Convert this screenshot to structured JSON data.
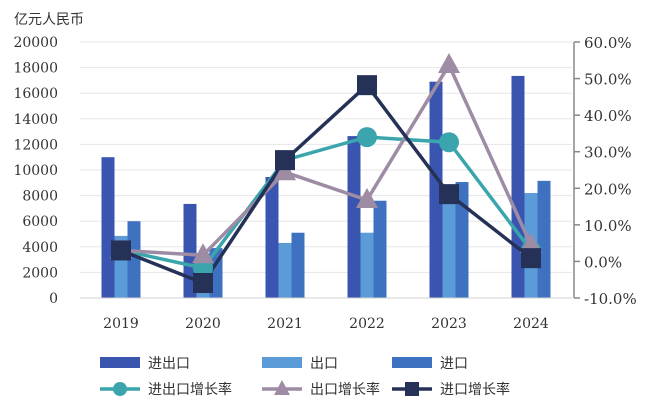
{
  "chart_data": {
    "type": "bar",
    "title": "",
    "left_unit_label": "亿元人民币",
    "categories": [
      "2019",
      "2020",
      "2021",
      "2022",
      "2023",
      "2024"
    ],
    "left_axis": {
      "range": [
        0,
        20000
      ],
      "ticks": [
        0,
        2000,
        4000,
        6000,
        8000,
        10000,
        12000,
        14000,
        16000,
        18000,
        20000
      ]
    },
    "right_axis": {
      "range": [
        -10,
        60
      ],
      "ticks": [
        "-10.0%",
        "0.0%",
        "10.0%",
        "20.0%",
        "30.0%",
        "40.0%",
        "50.0%",
        "60.0%"
      ],
      "tick_values": [
        -10,
        0,
        10,
        20,
        30,
        40,
        50,
        60
      ]
    },
    "grid": true,
    "legend_position": "bottom",
    "bar_series": [
      {
        "name": "进出口",
        "color": "#3a55b0",
        "values": [
          11000,
          7350,
          9450,
          12650,
          16900,
          17350
        ]
      },
      {
        "name": "出口",
        "color": "#5b9bd8",
        "values": [
          4850,
          3500,
          4300,
          5100,
          7650,
          8200
        ]
      },
      {
        "name": "进口",
        "color": "#3e72c0",
        "values": [
          6000,
          3900,
          5100,
          7600,
          9060,
          9150
        ]
      }
    ],
    "line_series": [
      {
        "name": "进出口增长率",
        "color": "#3aa5ad",
        "marker": "circle",
        "values": [
          3.1,
          -1.8,
          27.7,
          34.0,
          32.6,
          3.0
        ]
      },
      {
        "name": "出口增长率",
        "color": "#9d8ca3",
        "marker": "triangle",
        "values": [
          3.0,
          1.7,
          24.4,
          16.8,
          53.7,
          4.5
        ]
      },
      {
        "name": "进口增长率",
        "color": "#253156",
        "marker": "square",
        "values": [
          3.0,
          -5.9,
          27.7,
          48.2,
          18.4,
          0.9
        ]
      }
    ]
  }
}
